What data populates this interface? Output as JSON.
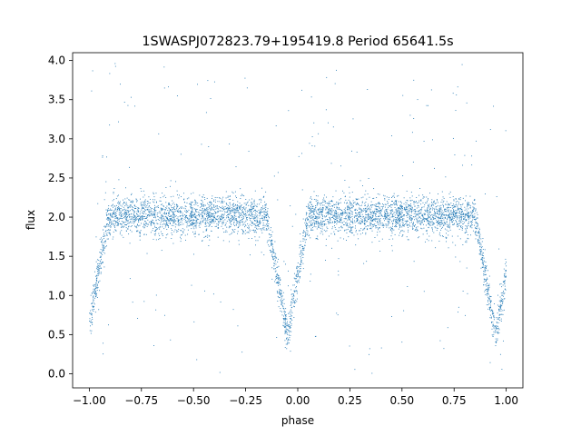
{
  "chart_data": {
    "type": "scatter",
    "title": "1SWASPJ072823.79+195419.8 Period 65641.5s",
    "xlabel": "phase",
    "ylabel": "flux",
    "xlim": [
      -1.08,
      1.08
    ],
    "ylim": [
      -0.18,
      4.1
    ],
    "xticks": [
      -1.0,
      -0.75,
      -0.5,
      -0.25,
      0.0,
      0.25,
      0.5,
      0.75,
      1.0
    ],
    "xtick_labels": [
      "−1.00",
      "−0.75",
      "−0.50",
      "−0.25",
      "0.00",
      "0.25",
      "0.50",
      "0.75",
      "1.00"
    ],
    "yticks": [
      0.0,
      0.5,
      1.0,
      1.5,
      2.0,
      2.5,
      3.0,
      3.5,
      4.0
    ],
    "ytick_labels": [
      "0.0",
      "0.5",
      "1.0",
      "1.5",
      "2.0",
      "2.5",
      "3.0",
      "3.5",
      "4.0"
    ],
    "grid": false,
    "marker_color": "#1f77b4",
    "series": [
      {
        "profile": {
          "baseline_flux": 2.02,
          "baseline_scatter": 0.12,
          "eclipses": [
            {
              "center_phase": -1.0,
              "min_flux": 0.6,
              "half_width": 0.09
            },
            {
              "center_phase": -0.05,
              "min_flux": 0.5,
              "half_width": 0.1
            },
            {
              "center_phase": 0.95,
              "min_flux": 0.5,
              "half_width": 0.1
            }
          ],
          "outlier_range": [
            0.0,
            4.0
          ],
          "phase_range": [
            -1.0,
            1.0
          ]
        }
      }
    ]
  }
}
